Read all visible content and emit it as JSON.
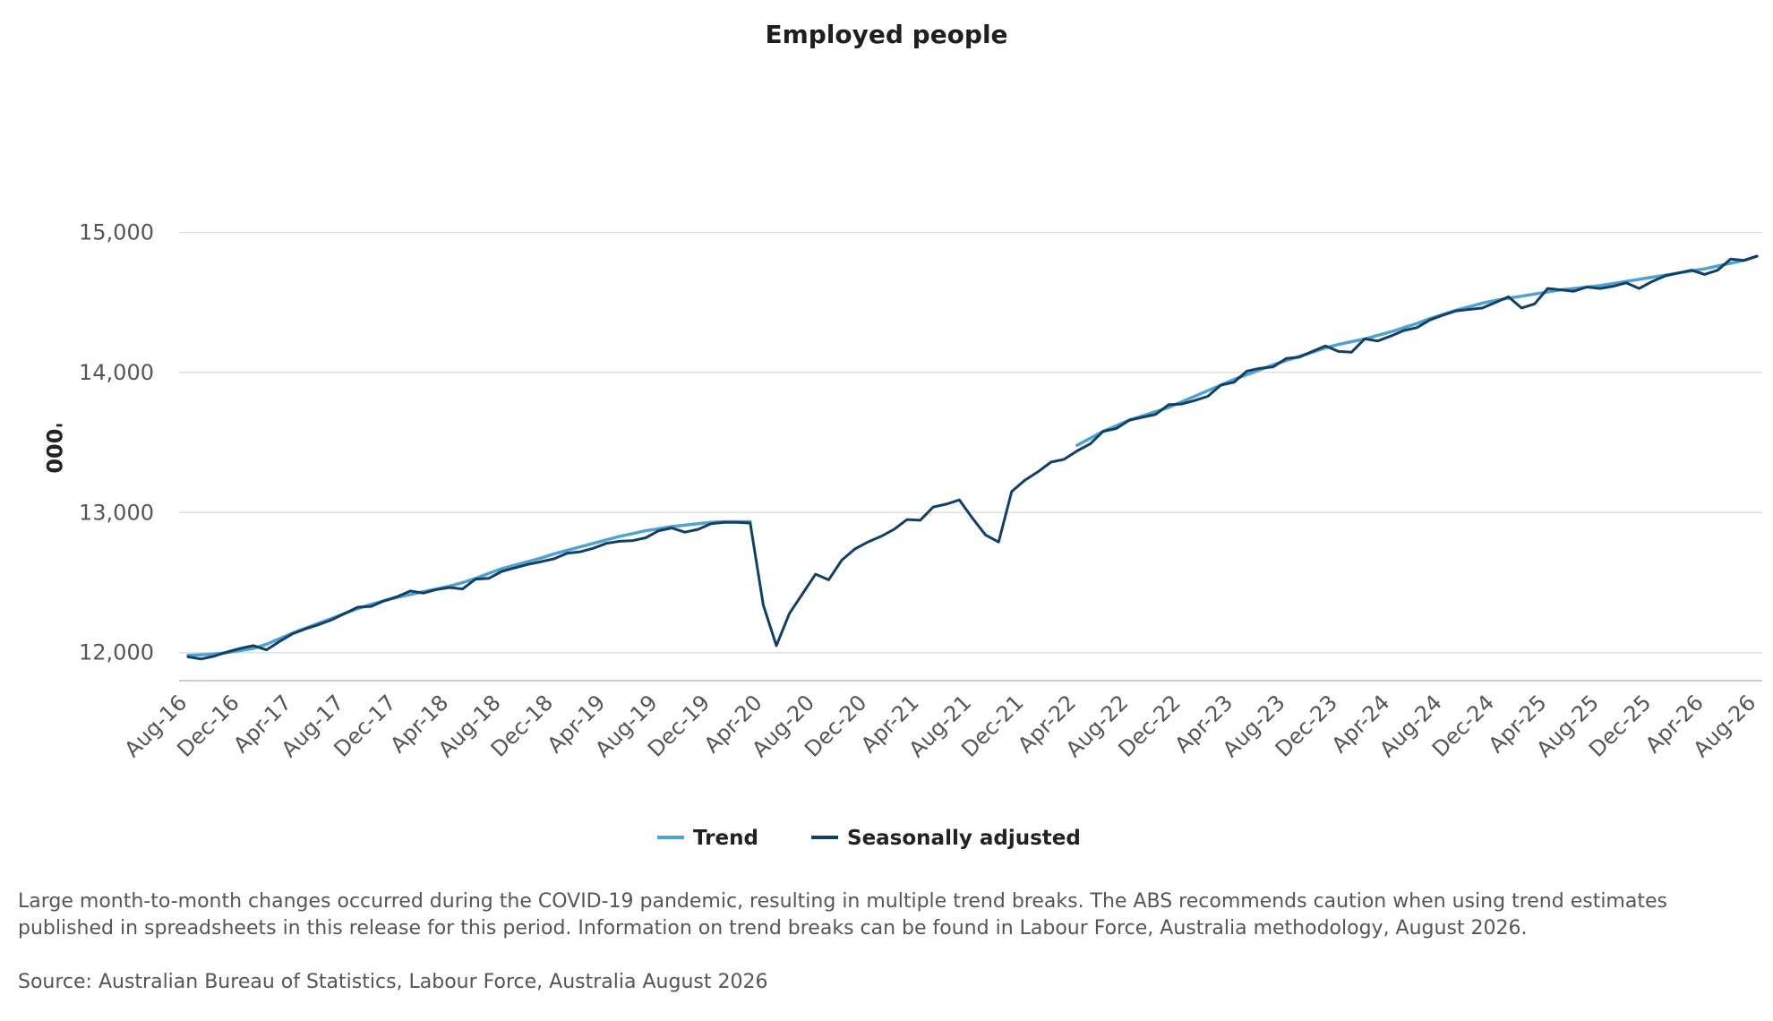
{
  "chart_data": {
    "type": "line",
    "title": "Employed people",
    "ylabel": "'000",
    "xlabel": "",
    "ylim": [
      11800,
      15700
    ],
    "yticks": [
      12000,
      13000,
      14000,
      15000
    ],
    "ytick_labels": [
      "12,000",
      "13,000",
      "14,000",
      "15,000"
    ],
    "grid": true,
    "legend_position": "bottom-center",
    "x": [
      "Aug-16",
      "Sep-16",
      "Oct-16",
      "Nov-16",
      "Dec-16",
      "Jan-17",
      "Feb-17",
      "Mar-17",
      "Apr-17",
      "May-17",
      "Jun-17",
      "Jul-17",
      "Aug-17",
      "Sep-17",
      "Oct-17",
      "Nov-17",
      "Dec-17",
      "Jan-18",
      "Feb-18",
      "Mar-18",
      "Apr-18",
      "May-18",
      "Jun-18",
      "Jul-18",
      "Aug-18",
      "Sep-18",
      "Oct-18",
      "Nov-18",
      "Dec-18",
      "Jan-19",
      "Feb-19",
      "Mar-19",
      "Apr-19",
      "May-19",
      "Jun-19",
      "Jul-19",
      "Aug-19",
      "Sep-19",
      "Oct-19",
      "Nov-19",
      "Dec-19",
      "Jan-20",
      "Feb-20",
      "Mar-20",
      "Apr-20",
      "May-20",
      "Jun-20",
      "Jul-20",
      "Aug-20",
      "Sep-20",
      "Oct-20",
      "Nov-20",
      "Dec-20",
      "Jan-21",
      "Feb-21",
      "Mar-21",
      "Apr-21",
      "May-21",
      "Jun-21",
      "Jul-21",
      "Aug-21",
      "Sep-21",
      "Oct-21",
      "Nov-21",
      "Dec-21",
      "Jan-22",
      "Feb-22",
      "Mar-22",
      "Apr-22",
      "May-22",
      "Jun-22",
      "Jul-22",
      "Aug-22",
      "Sep-22",
      "Oct-22",
      "Nov-22",
      "Dec-22",
      "Jan-23",
      "Feb-23",
      "Mar-23",
      "Apr-23",
      "May-23",
      "Jun-23",
      "Jul-23",
      "Aug-23",
      "Sep-23",
      "Oct-23",
      "Nov-23",
      "Dec-23",
      "Jan-24",
      "Feb-24",
      "Mar-24",
      "Apr-24",
      "May-24",
      "Jun-24",
      "Jul-24",
      "Aug-24",
      "Sep-24",
      "Oct-24",
      "Nov-24",
      "Dec-24",
      "Jan-25",
      "Feb-25",
      "Mar-25",
      "Apr-25",
      "May-25",
      "Jun-25",
      "Jul-25",
      "Aug-25",
      "Sep-25",
      "Oct-25",
      "Nov-25",
      "Dec-25",
      "Jan-26",
      "Feb-26",
      "Mar-26",
      "Apr-26",
      "May-26",
      "Jun-26",
      "Jul-26",
      "Aug-26"
    ],
    "tick_labels": [
      "Aug-16",
      "Dec-16",
      "Apr-17",
      "Aug-17",
      "Dec-17",
      "Apr-18",
      "Aug-18",
      "Dec-18",
      "Apr-19",
      "Aug-19",
      "Dec-19",
      "Apr-20",
      "Aug-20",
      "Dec-20",
      "Apr-21",
      "Aug-21",
      "Dec-21",
      "Apr-22",
      "Aug-22",
      "Dec-22",
      "Apr-23",
      "Aug-23",
      "Dec-23",
      "Apr-24",
      "Aug-24",
      "Dec-24",
      "Apr-25",
      "Aug-25",
      "Dec-25",
      "Apr-26",
      "Aug-26"
    ],
    "series": [
      {
        "name": "Trend",
        "color": "#4fa3d1",
        "values": [
          11980,
          11985,
          11990,
          12000,
          12015,
          12030,
          12060,
          12100,
          12140,
          12175,
          12210,
          12245,
          12280,
          12315,
          12345,
          12370,
          12395,
          12415,
          12435,
          12455,
          12475,
          12500,
          12530,
          12565,
          12600,
          12625,
          12650,
          12675,
          12705,
          12730,
          12755,
          12780,
          12805,
          12830,
          12850,
          12870,
          12885,
          12900,
          12910,
          12920,
          12930,
          12935,
          12935,
          12935,
          null,
          null,
          null,
          null,
          null,
          null,
          null,
          null,
          null,
          null,
          null,
          null,
          null,
          null,
          null,
          null,
          null,
          null,
          null,
          null,
          null,
          null,
          null,
          null,
          13480,
          13530,
          13580,
          13620,
          13660,
          13690,
          13720,
          13750,
          13790,
          13830,
          13870,
          13910,
          13950,
          13985,
          14020,
          14055,
          14085,
          14115,
          14145,
          14175,
          14200,
          14220,
          14240,
          14265,
          14290,
          14320,
          14350,
          14385,
          14415,
          14445,
          14470,
          14495,
          14515,
          14530,
          14545,
          14560,
          14575,
          14590,
          14600,
          14610,
          14620,
          14635,
          14650,
          14665,
          14680,
          14695,
          14710,
          14725,
          14740,
          14760,
          14780,
          14800,
          14830
        ]
      },
      {
        "name": "Seasonally adjusted",
        "color": "#123f63",
        "values": [
          11970,
          11955,
          11975,
          12005,
          12030,
          12050,
          12020,
          12080,
          12135,
          12170,
          12200,
          12235,
          12280,
          12325,
          12330,
          12370,
          12400,
          12440,
          12425,
          12450,
          12465,
          12455,
          12525,
          12530,
          12580,
          12605,
          12630,
          12650,
          12670,
          12710,
          12720,
          12745,
          12780,
          12795,
          12800,
          12820,
          12870,
          12890,
          12860,
          12880,
          12920,
          12930,
          12930,
          12925,
          12340,
          12050,
          12280,
          12420,
          12560,
          12520,
          12660,
          12740,
          12790,
          12830,
          12880,
          12950,
          12945,
          13040,
          13060,
          13090,
          12960,
          12840,
          12790,
          13150,
          13230,
          13290,
          13360,
          13380,
          13440,
          13490,
          13580,
          13600,
          13660,
          13680,
          13700,
          13770,
          13775,
          13800,
          13830,
          13910,
          13930,
          14010,
          14030,
          14040,
          14100,
          14110,
          14150,
          14190,
          14150,
          14145,
          14240,
          14225,
          14260,
          14300,
          14320,
          14375,
          14410,
          14440,
          14450,
          14460,
          14500,
          14540,
          14460,
          14490,
          14600,
          14590,
          14580,
          14610,
          14600,
          14615,
          14640,
          14600,
          14650,
          14690,
          14710,
          14730,
          14700,
          14730,
          14810,
          14800,
          14830
        ]
      }
    ]
  },
  "note": "Large month-to-month changes occurred during the COVID-19 pandemic, resulting in multiple trend breaks. The ABS recommends caution when using trend estimates published in spreadsheets in this release for this period. Information on trend breaks can be found in Labour Force, Australia methodology, August 2026.",
  "source": "Source: Australian Bureau of Statistics, Labour Force, Australia August 2026"
}
